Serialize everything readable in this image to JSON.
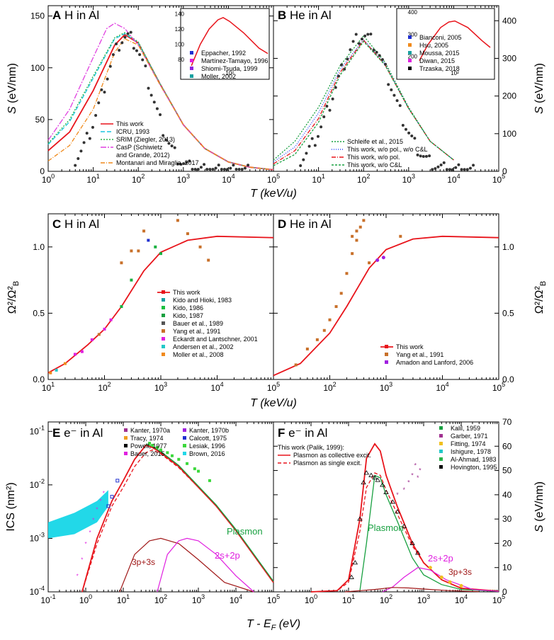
{
  "colors": {
    "work": "#e8141b",
    "icru": "#19c6e0",
    "srim": "#2bb24a",
    "casp": "#e040e0",
    "montanari": "#f08a1c",
    "green": "#18a040",
    "blue": "#2040ff",
    "darkred": "#a01818",
    "magenta": "#e020e0",
    "cyan": "#22d8e8",
    "orange": "#c8702a"
  },
  "chart_data": [
    {
      "id": "A",
      "type": "line",
      "title": "H in Al",
      "letter": "A",
      "xscale": "log",
      "xlim": [
        1,
        100000
      ],
      "ylim": [
        0,
        160
      ],
      "yticks": [
        0,
        50,
        100,
        150
      ],
      "ylabel": "S (eV/nm)",
      "series": [
        {
          "name": "This work",
          "color": "#e8141b",
          "x": [
            1,
            3,
            10,
            30,
            50,
            100,
            300,
            1000,
            3000,
            10000,
            30000,
            100000
          ],
          "y": [
            20,
            38,
            78,
            122,
            132,
            124,
            85,
            45,
            22,
            9,
            4,
            1.5
          ]
        },
        {
          "name": "ICRU, 1993",
          "color": "#19c6e0",
          "x": [
            1,
            3,
            10,
            30,
            50,
            100,
            300,
            1000,
            3000,
            10000,
            30000,
            100000
          ],
          "y": [
            26,
            48,
            90,
            128,
            133,
            124,
            85,
            45,
            22,
            9,
            4,
            1.5
          ]
        },
        {
          "name": "SRIM (Ziegler, 2013)",
          "color": "#2bb24a",
          "x": [
            1,
            3,
            10,
            30,
            50,
            100,
            300,
            1000,
            3000,
            10000,
            30000,
            100000
          ],
          "y": [
            27,
            50,
            92,
            129,
            134,
            125,
            85,
            45,
            22,
            9,
            4,
            1.5
          ]
        },
        {
          "name": "CasP (Schiwietz and Grande, 2012)",
          "color": "#e040e0",
          "x": [
            1,
            3,
            10,
            20,
            30,
            50,
            100,
            300,
            1000,
            3000,
            10000,
            30000,
            100000
          ],
          "y": [
            30,
            60,
            110,
            138,
            143,
            138,
            122,
            84,
            45,
            22,
            9,
            4,
            1.5
          ]
        },
        {
          "name": "Montanari and Miraglia, 2017",
          "color": "#f08a1c",
          "x": [
            1,
            3,
            10,
            30,
            50,
            100,
            300,
            1000,
            3000,
            10000,
            30000,
            100000
          ],
          "y": [
            10,
            25,
            60,
            115,
            128,
            122,
            84,
            45,
            22,
            9,
            4,
            1.5
          ]
        }
      ],
      "inset": {
        "xlabel": "10²",
        "yticks": [
          80,
          100,
          120,
          140
        ],
        "legend": [
          "Eppacher, 1992",
          "Martínez-Tamayo, 1996",
          "Shiomi-Tsuda, 1999",
          "Moller, 2002"
        ],
        "legend_colors": [
          "#2030d0",
          "#e020e0",
          "#9020e0",
          "#18a0a0"
        ]
      }
    },
    {
      "id": "B",
      "type": "line",
      "title": "He in Al",
      "letter": "B",
      "xscale": "log",
      "xlim": [
        1,
        100000
      ],
      "ylim": [
        0,
        440
      ],
      "yticks": [
        0,
        100,
        200,
        300,
        400
      ],
      "ylabel": "S (eV/nm)",
      "series": [
        {
          "name": "Schleife et al., 2015",
          "color": "#18a040",
          "dash": "2,2",
          "x": [
            1,
            3,
            10,
            30,
            100,
            300,
            1000,
            3000,
            10000
          ],
          "y": [
            30,
            80,
            170,
            280,
            360,
            290,
            170,
            80,
            30
          ]
        },
        {
          "name": "This work, w/o pol., w/o C&L",
          "color": "#2040ff",
          "dash": "1,2",
          "x": [
            1,
            3,
            10,
            30,
            100,
            300,
            1000,
            3000,
            10000
          ],
          "y": [
            25,
            65,
            155,
            270,
            350,
            285,
            168,
            80,
            30
          ]
        },
        {
          "name": "This work, w/o pol.",
          "color": "#e8141b",
          "dash": "6,2,1,2",
          "x": [
            1,
            3,
            10,
            30,
            100,
            300,
            1000,
            3000,
            10000
          ],
          "y": [
            20,
            55,
            140,
            262,
            348,
            283,
            167,
            80,
            30
          ]
        },
        {
          "name": "This work, w/o C&L",
          "color": "#18a040",
          "dash": "3,2",
          "x": [
            1,
            3,
            10,
            30,
            100,
            300,
            1000,
            3000,
            10000
          ],
          "y": [
            15,
            45,
            130,
            255,
            345,
            282,
            167,
            80,
            30
          ]
        }
      ],
      "inset": {
        "xlabel": "10²",
        "yticks": [
          200,
          300,
          400
        ],
        "legend": [
          "Bianconi, 2005",
          "Hsu, 2005",
          "Moussa, 2015",
          "Diwan, 2015",
          "Trzaska, 2018"
        ],
        "legend_colors": [
          "#2030d0",
          "#f08a1c",
          "#18a0a0",
          "#e020e0",
          "#000000"
        ]
      }
    },
    {
      "id": "C",
      "type": "scatter",
      "title": "H in Al",
      "letter": "C",
      "xscale": "log",
      "xlim": [
        10,
        100000
      ],
      "ylim": [
        0,
        1.25
      ],
      "yticks": [
        0,
        0.5,
        1.0
      ],
      "ylabel": "Ω²/Ω²B",
      "series": [
        {
          "name": "This work",
          "color": "#e8141b",
          "x": [
            10,
            20,
            50,
            100,
            200,
            500,
            1000,
            3000,
            10000,
            100000
          ],
          "y": [
            0.05,
            0.12,
            0.26,
            0.38,
            0.55,
            0.82,
            0.96,
            1.05,
            1.08,
            1.07
          ]
        }
      ],
      "legend": [
        "This work",
        "Kido and Hioki, 1983",
        "Kido, 1986",
        "Kido, 1987",
        "Bauer et al., 1989",
        "Yang et al., 1991",
        "Eckardt and Lantschner, 2001",
        "Andersen et al., 2002",
        "Moller et al., 2008"
      ]
    },
    {
      "id": "D",
      "type": "scatter",
      "title": "He in Al",
      "letter": "D",
      "xscale": "log",
      "xlim": [
        10,
        100000
      ],
      "ylim": [
        0,
        1.25
      ],
      "yticks": [
        0,
        0.5,
        1.0
      ],
      "ylabel": "Ω²/Ω²B",
      "series": [
        {
          "name": "This work",
          "color": "#e8141b",
          "x": [
            10,
            30,
            100,
            200,
            500,
            1000,
            3000,
            10000,
            100000
          ],
          "y": [
            0.03,
            0.12,
            0.35,
            0.55,
            0.84,
            0.98,
            1.06,
            1.08,
            1.07
          ]
        }
      ],
      "legend": [
        "This work",
        "Yang et al., 1991",
        "Amadon and Lanford, 2006"
      ]
    },
    {
      "id": "E",
      "type": "line",
      "title": "e⁻ in Al",
      "letter": "E",
      "xscale": "log",
      "yscale": "log",
      "xlim": [
        0.1,
        100000
      ],
      "ylim": [
        0.0001,
        0.15
      ],
      "ylabel": "ICS (nm²)",
      "annotations": [
        "Plasmon",
        "2s+2p",
        "3p+3s"
      ],
      "legend": [
        "Kanter, 1970a",
        "Kanter, 1970b",
        "Tracy, 1974",
        "Calcott, 1975",
        "Powell, 1977",
        "Lesiak, 1996",
        "Bauer, 2015",
        "Brown, 2016"
      ]
    },
    {
      "id": "F",
      "type": "line",
      "title": "e⁻ in Al",
      "letter": "F",
      "xscale": "log",
      "xlim": [
        0.1,
        100000
      ],
      "ylim": [
        0,
        70
      ],
      "yticks": [
        0,
        10,
        20,
        30,
        40,
        50,
        60,
        70
      ],
      "ylabel": "S (eV/nm)",
      "annotations": [
        "Plasmon",
        "2s+2p",
        "3p+3s"
      ],
      "legend_title": "This work (Palik, 1999):",
      "legend": [
        "Plasmon as collective excit.",
        "Plasmon as single excit."
      ],
      "legend2": [
        "Kalil, 1959",
        "Garber, 1971",
        "Fitting, 1974",
        "Ishigure, 1978",
        "Al-Ahmad, 1983",
        "Hovington, 1995"
      ]
    }
  ],
  "axes": {
    "xlabel_top": "T (keV/u)",
    "xlabel_mid": "T (keV/u)",
    "xlabel_bottom": "T - EF (eV)"
  },
  "texts": {
    "A_title": "H in Al",
    "B_title": "He in Al",
    "C_title": "H in Al",
    "D_title": "He in Al",
    "E_title": "e⁻ in Al",
    "F_title": "e⁻ in Al",
    "A_leg": [
      "This work",
      "ICRU, 1993",
      "SRIM (Ziegler, 2013)",
      "CasP (Schiwietz",
      "and Grande, 2012)",
      "Montanari and Miraglia, 2017"
    ],
    "A_inset": [
      "Eppacher, 1992",
      "Martínez-Tamayo, 1996",
      "Shiomi-Tsuda, 1999",
      "Moller, 2002"
    ],
    "B_leg": [
      "Schleife et al., 2015",
      "This work, w/o pol., w/o C&L",
      "This work, w/o pol.",
      "This work, w/o C&L"
    ],
    "B_inset": [
      "Bianconi, 2005",
      "Hsu, 2005",
      "Moussa, 2015",
      "Diwan, 2015",
      "Trzaska, 2018"
    ],
    "C_leg": [
      "This work",
      "Kido and Hioki, 1983",
      "Kido, 1986",
      "Kido, 1987",
      "Bauer et al., 1989",
      "Yang et al., 1991",
      "Eckardt and Lantschner, 2001",
      "Andersen et al., 2002",
      "Moller et al., 2008"
    ],
    "D_leg": [
      "This work",
      "Yang et al., 1991",
      "Amadon and Lanford, 2006"
    ],
    "E_leg": [
      "Kanter, 1970a",
      "Kanter, 1970b",
      "Tracy, 1974",
      "Calcott, 1975",
      "Powell, 1977",
      "Lesiak, 1996",
      "Bauer, 2015",
      "Brown, 2016"
    ],
    "F_leg_title": "This work (Palik, 1999):",
    "F_leg": [
      "Plasmon as collective excit.",
      "Plasmon as single excit."
    ],
    "F_leg2": [
      "Kalil, 1959",
      "Garber, 1971",
      "Fitting, 1974",
      "Ishigure, 1978",
      "Al-Ahmad, 1983",
      "Hovington, 1995"
    ],
    "plasmon": "Plasmon",
    "twos": "2s+2p",
    "threep": "3p+3s",
    "inset_x": "10²"
  }
}
